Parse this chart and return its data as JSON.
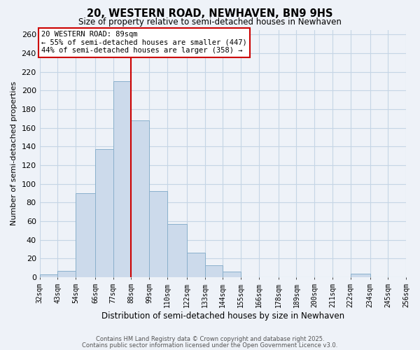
{
  "title": "20, WESTERN ROAD, NEWHAVEN, BN9 9HS",
  "subtitle": "Size of property relative to semi-detached houses in Newhaven",
  "xlabel": "Distribution of semi-detached houses by size in Newhaven",
  "ylabel": "Number of semi-detached properties",
  "bin_labels": [
    "32sqm",
    "43sqm",
    "54sqm",
    "66sqm",
    "77sqm",
    "88sqm",
    "99sqm",
    "110sqm",
    "122sqm",
    "133sqm",
    "144sqm",
    "155sqm",
    "166sqm",
    "178sqm",
    "189sqm",
    "200sqm",
    "211sqm",
    "222sqm",
    "234sqm",
    "245sqm",
    "256sqm"
  ],
  "bin_edges": [
    32,
    43,
    54,
    66,
    77,
    88,
    99,
    110,
    122,
    133,
    144,
    155,
    166,
    178,
    189,
    200,
    211,
    222,
    234,
    245,
    256
  ],
  "bar_heights": [
    3,
    7,
    90,
    137,
    210,
    168,
    92,
    57,
    26,
    13,
    6,
    0,
    0,
    0,
    0,
    0,
    0,
    4,
    0,
    0
  ],
  "bar_color": "#ccdaeb",
  "bar_edgecolor": "#8ab0cc",
  "grid_color": "#c5d5e5",
  "vline_x": 88,
  "vline_color": "#cc0000",
  "annotation_title": "20 WESTERN ROAD: 89sqm",
  "annotation_line1": "← 55% of semi-detached houses are smaller (447)",
  "annotation_line2": "44% of semi-detached houses are larger (358) →",
  "annotation_box_facecolor": "#ffffff",
  "annotation_box_edgecolor": "#cc0000",
  "ylim": [
    0,
    265
  ],
  "yticks": [
    0,
    20,
    40,
    60,
    80,
    100,
    120,
    140,
    160,
    180,
    200,
    220,
    240,
    260
  ],
  "footer1": "Contains HM Land Registry data © Crown copyright and database right 2025.",
  "footer2": "Contains public sector information licensed under the Open Government Licence v3.0.",
  "bg_color": "#eef2f8"
}
